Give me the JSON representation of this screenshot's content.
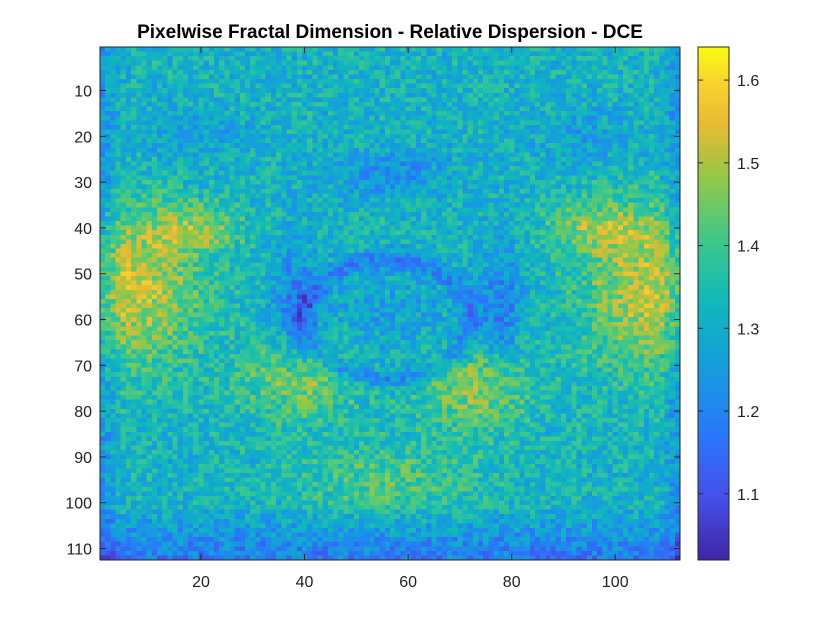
{
  "chart_data": {
    "type": "heatmap",
    "title": "Pixelwise Fractal Dimension - Relative Dispersion - DCE",
    "xlabel": "",
    "ylabel": "",
    "x_range": [
      1,
      112
    ],
    "y_range": [
      1,
      112
    ],
    "x_ticks": [
      20,
      40,
      60,
      80,
      100
    ],
    "y_ticks": [
      10,
      20,
      30,
      40,
      50,
      60,
      70,
      80,
      90,
      100,
      110
    ],
    "y_reversed": true,
    "colormap": "parula",
    "clim": [
      1.02,
      1.64
    ],
    "colorbar": {
      "location": "right",
      "ticks": [
        1.1,
        1.2,
        1.3,
        1.4,
        1.5,
        1.6
      ]
    },
    "grid": false
  }
}
